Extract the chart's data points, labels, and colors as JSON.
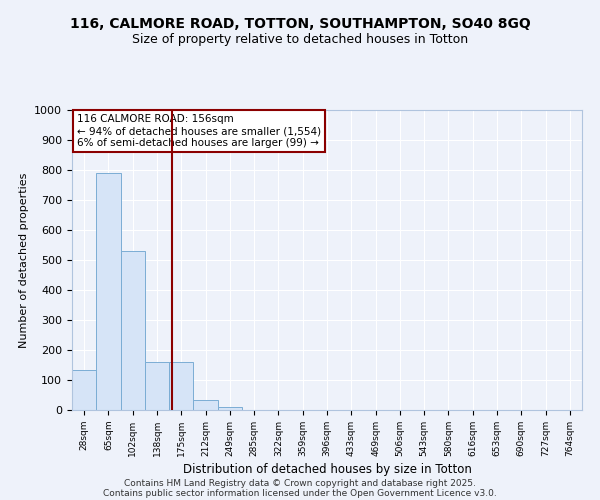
{
  "title1": "116, CALMORE ROAD, TOTTON, SOUTHAMPTON, SO40 8GQ",
  "title2": "Size of property relative to detached houses in Totton",
  "xlabel": "Distribution of detached houses by size in Totton",
  "ylabel": "Number of detached properties",
  "categories": [
    "28sqm",
    "65sqm",
    "102sqm",
    "138sqm",
    "175sqm",
    "212sqm",
    "249sqm",
    "285sqm",
    "322sqm",
    "359sqm",
    "396sqm",
    "433sqm",
    "469sqm",
    "506sqm",
    "543sqm",
    "580sqm",
    "616sqm",
    "653sqm",
    "690sqm",
    "727sqm",
    "764sqm"
  ],
  "values": [
    135,
    790,
    530,
    160,
    160,
    35,
    10,
    0,
    0,
    0,
    0,
    0,
    0,
    0,
    0,
    0,
    0,
    0,
    0,
    0,
    0
  ],
  "bar_color": "#d6e4f7",
  "bar_edge_color": "#7badd4",
  "red_line_x": 3.62,
  "ylim": [
    0,
    1000
  ],
  "yticks": [
    0,
    100,
    200,
    300,
    400,
    500,
    600,
    700,
    800,
    900,
    1000
  ],
  "annotation_title": "116 CALMORE ROAD: 156sqm",
  "annotation_line2": "← 94% of detached houses are smaller (1,554)",
  "annotation_line3": "6% of semi-detached houses are larger (99) →",
  "footer1": "Contains HM Land Registry data © Crown copyright and database right 2025.",
  "footer2": "Contains public sector information licensed under the Open Government Licence v3.0.",
  "bg_color": "#eef2fa",
  "plot_bg_color": "#eef2fa",
  "grid_color": "#ffffff",
  "ann_box_color": "#8b0000",
  "title1_fontsize": 10,
  "title2_fontsize": 9
}
